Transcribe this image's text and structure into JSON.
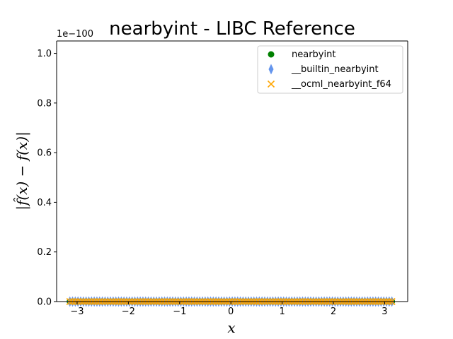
{
  "chart_data": {
    "type": "scatter",
    "title": "nearbyint - LIBC Reference",
    "xlabel": "x",
    "ylabel": "|f̂(x) − f(x)|",
    "y_offset_label": "1e−100",
    "xlim": [
      -3.4,
      3.45
    ],
    "ylim": [
      0,
      1.05
    ],
    "x_ticks": [
      -3,
      -2,
      -1,
      0,
      1,
      2,
      3
    ],
    "x_tick_labels": [
      "−3",
      "−2",
      "−1",
      "0",
      "1",
      "2",
      "3"
    ],
    "y_ticks": [
      0.0,
      0.2,
      0.4,
      0.6,
      0.8,
      1.0
    ],
    "y_tick_labels": [
      "0.0",
      "0.2",
      "0.4",
      "0.6",
      "0.8",
      "1.0"
    ],
    "x_range": [
      -3.14159,
      3.14159
    ],
    "n_points": 120,
    "legend_position": "top-right",
    "series": [
      {
        "name": "nearbyint",
        "marker": "circle",
        "color": "#008000",
        "value": 0
      },
      {
        "name": "__builtin_nearbyint",
        "marker": "thin_diamond",
        "color": "#6495ed",
        "value": 0
      },
      {
        "name": "__ocml_nearbyint_f64",
        "marker": "x",
        "color": "#ffa500",
        "value": 0
      }
    ]
  }
}
